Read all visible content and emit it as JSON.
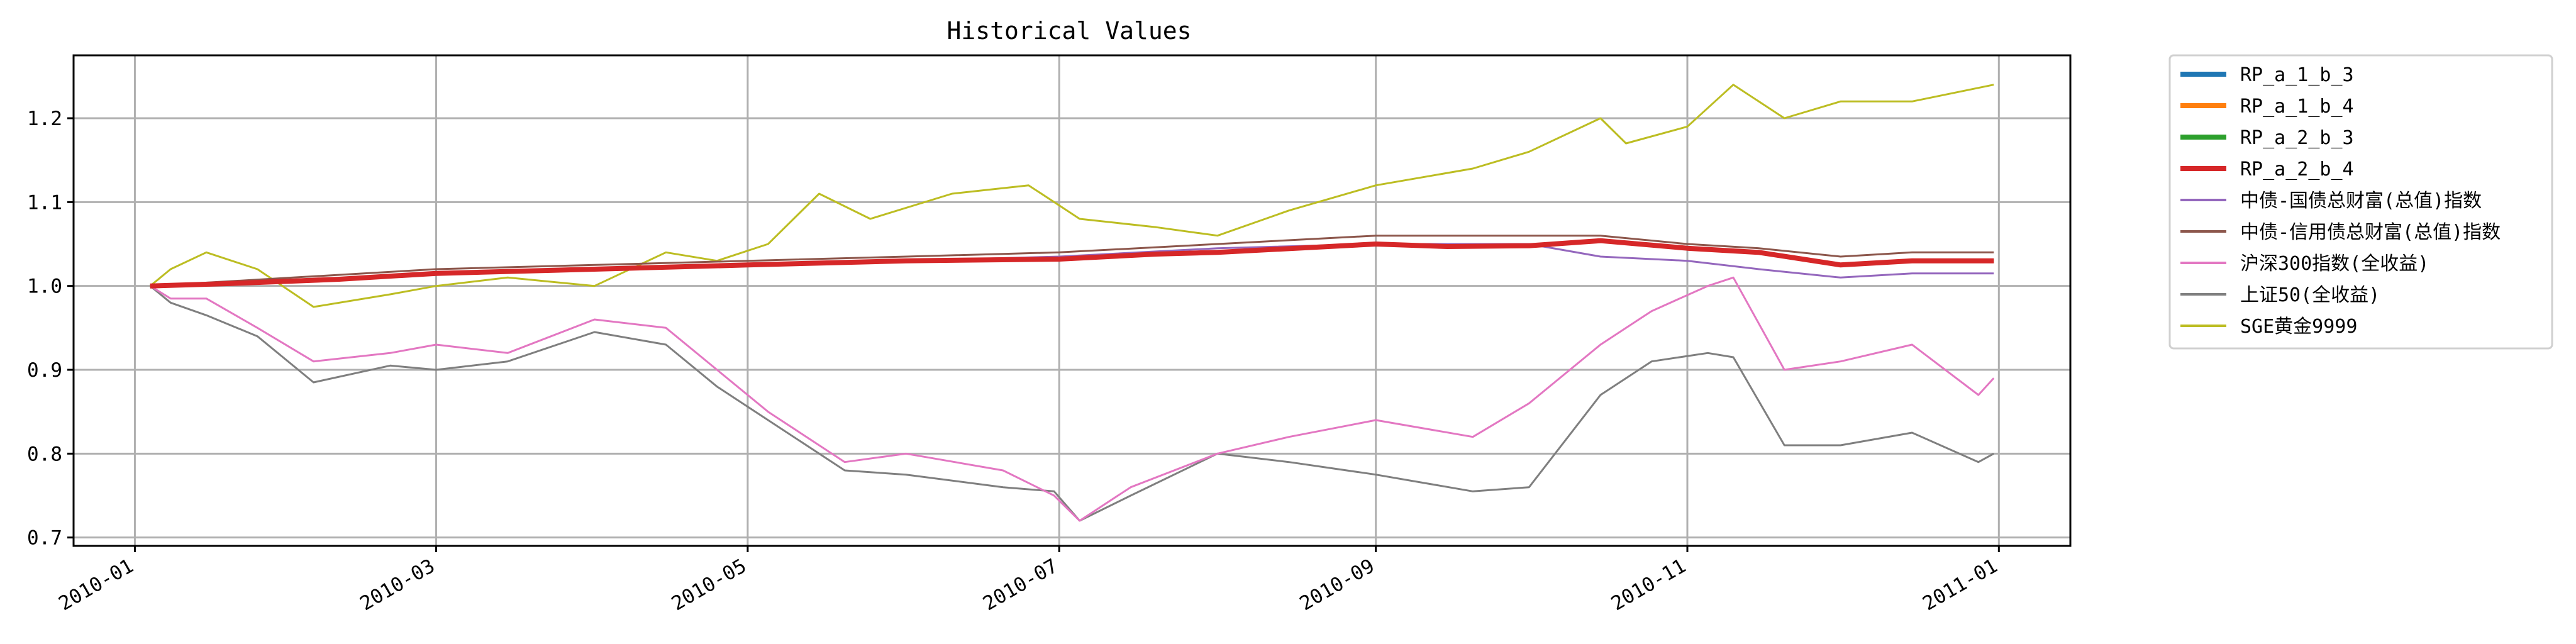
{
  "chart_data": {
    "type": "line",
    "title": "Historical Values",
    "xlabel": "",
    "ylabel": "",
    "x_range": [
      "2009-12-20",
      "2011-01-15"
    ],
    "ylim": [
      0.69,
      1.275
    ],
    "grid": true,
    "legend_placement": "outside-right-top",
    "x_ticks": [
      "2010-01",
      "2010-03",
      "2010-05",
      "2010-07",
      "2010-09",
      "2010-11",
      "2011-01"
    ],
    "x_tick_dates": [
      "2010-01-01",
      "2010-03-01",
      "2010-05-01",
      "2010-07-01",
      "2010-09-01",
      "2010-11-01",
      "2011-01-01"
    ],
    "y_ticks": [
      0.7,
      0.8,
      0.9,
      1.0,
      1.1,
      1.2
    ],
    "y_tick_labels": [
      "0.7",
      "0.8",
      "0.9",
      "1.0",
      "1.1",
      "1.2"
    ],
    "series": [
      {
        "name": "RP_a_1_b_3",
        "color": "#1f77b4",
        "width": 7,
        "x": [
          "2010-01-04",
          "2010-01-20",
          "2010-02-10",
          "2010-03-01",
          "2010-04-01",
          "2010-05-01",
          "2010-06-01",
          "2010-07-01",
          "2010-07-20",
          "2010-08-01",
          "2010-09-01",
          "2010-09-15",
          "2010-10-01",
          "2010-10-15",
          "2010-11-01",
          "2010-11-15",
          "2010-12-01",
          "2010-12-15",
          "2010-12-31"
        ],
        "y": [
          1.0,
          1.003,
          1.008,
          1.015,
          1.02,
          1.025,
          1.03,
          1.032,
          1.038,
          1.04,
          1.05,
          1.047,
          1.048,
          1.054,
          1.045,
          1.04,
          1.025,
          1.03,
          1.03
        ]
      },
      {
        "name": "RP_a_1_b_4",
        "color": "#ff7f0e",
        "width": 7,
        "x": [
          "2010-01-04",
          "2010-01-20",
          "2010-02-10",
          "2010-03-01",
          "2010-04-01",
          "2010-05-01",
          "2010-06-01",
          "2010-07-01",
          "2010-07-20",
          "2010-08-01",
          "2010-09-01",
          "2010-09-15",
          "2010-10-01",
          "2010-10-15",
          "2010-11-01",
          "2010-11-15",
          "2010-12-01",
          "2010-12-15",
          "2010-12-31"
        ],
        "y": [
          1.0,
          1.003,
          1.008,
          1.015,
          1.02,
          1.025,
          1.03,
          1.032,
          1.038,
          1.04,
          1.05,
          1.047,
          1.048,
          1.054,
          1.045,
          1.04,
          1.025,
          1.03,
          1.03
        ]
      },
      {
        "name": "RP_a_2_b_3",
        "color": "#2ca02c",
        "width": 7,
        "x": [
          "2010-01-04",
          "2010-01-20",
          "2010-02-10",
          "2010-03-01",
          "2010-04-01",
          "2010-05-01",
          "2010-06-01",
          "2010-07-01",
          "2010-07-20",
          "2010-08-01",
          "2010-09-01",
          "2010-09-15",
          "2010-10-01",
          "2010-10-15",
          "2010-11-01",
          "2010-11-15",
          "2010-12-01",
          "2010-12-15",
          "2010-12-31"
        ],
        "y": [
          1.0,
          1.003,
          1.008,
          1.015,
          1.02,
          1.025,
          1.03,
          1.032,
          1.038,
          1.04,
          1.05,
          1.047,
          1.048,
          1.054,
          1.045,
          1.04,
          1.025,
          1.03,
          1.03
        ]
      },
      {
        "name": "RP_a_2_b_4",
        "color": "#d62728",
        "width": 8,
        "x": [
          "2010-01-04",
          "2010-01-20",
          "2010-02-10",
          "2010-03-01",
          "2010-04-01",
          "2010-05-01",
          "2010-06-01",
          "2010-07-01",
          "2010-07-20",
          "2010-08-01",
          "2010-09-01",
          "2010-09-15",
          "2010-10-01",
          "2010-10-15",
          "2010-11-01",
          "2010-11-15",
          "2010-12-01",
          "2010-12-15",
          "2010-12-31"
        ],
        "y": [
          1.0,
          1.003,
          1.008,
          1.015,
          1.02,
          1.025,
          1.03,
          1.032,
          1.038,
          1.04,
          1.05,
          1.047,
          1.048,
          1.054,
          1.045,
          1.04,
          1.025,
          1.03,
          1.03
        ]
      },
      {
        "name": "中债-国债总财富(总值)指数",
        "color": "#9467bd",
        "width": 3,
        "x": [
          "2010-01-04",
          "2010-02-01",
          "2010-03-01",
          "2010-04-01",
          "2010-05-01",
          "2010-06-01",
          "2010-07-01",
          "2010-08-01",
          "2010-09-01",
          "2010-10-01",
          "2010-10-15",
          "2010-11-01",
          "2010-11-15",
          "2010-12-01",
          "2010-12-15",
          "2010-12-31"
        ],
        "y": [
          1.0,
          1.006,
          1.015,
          1.02,
          1.025,
          1.03,
          1.035,
          1.045,
          1.05,
          1.05,
          1.035,
          1.03,
          1.02,
          1.01,
          1.015,
          1.015
        ]
      },
      {
        "name": "中债-信用债总财富(总值)指数",
        "color": "#8c564b",
        "width": 3,
        "x": [
          "2010-01-04",
          "2010-02-01",
          "2010-03-01",
          "2010-04-01",
          "2010-05-01",
          "2010-06-01",
          "2010-07-01",
          "2010-08-01",
          "2010-09-01",
          "2010-10-01",
          "2010-10-15",
          "2010-11-01",
          "2010-11-15",
          "2010-12-01",
          "2010-12-15",
          "2010-12-31"
        ],
        "y": [
          1.0,
          1.01,
          1.02,
          1.025,
          1.03,
          1.035,
          1.04,
          1.05,
          1.06,
          1.06,
          1.06,
          1.05,
          1.045,
          1.035,
          1.04,
          1.04
        ]
      },
      {
        "name": "沪深300指数(全收益)",
        "color": "#e377c2",
        "width": 3,
        "x": [
          "2010-01-04",
          "2010-01-08",
          "2010-01-15",
          "2010-01-25",
          "2010-02-05",
          "2010-02-20",
          "2010-03-01",
          "2010-03-15",
          "2010-04-01",
          "2010-04-15",
          "2010-04-25",
          "2010-05-05",
          "2010-05-20",
          "2010-06-01",
          "2010-06-20",
          "2010-06-30",
          "2010-07-05",
          "2010-07-15",
          "2010-08-01",
          "2010-08-15",
          "2010-09-01",
          "2010-09-20",
          "2010-10-01",
          "2010-10-15",
          "2010-10-25",
          "2010-11-05",
          "2010-11-10",
          "2010-11-20",
          "2010-12-01",
          "2010-12-15",
          "2010-12-28",
          "2010-12-31"
        ],
        "y": [
          1.0,
          0.985,
          0.985,
          0.95,
          0.91,
          0.92,
          0.93,
          0.92,
          0.96,
          0.95,
          0.9,
          0.85,
          0.79,
          0.8,
          0.78,
          0.75,
          0.72,
          0.76,
          0.8,
          0.82,
          0.84,
          0.82,
          0.86,
          0.93,
          0.97,
          1.0,
          1.01,
          0.9,
          0.91,
          0.93,
          0.87,
          0.89
        ]
      },
      {
        "name": "上证50(全收益)",
        "color": "#7f7f7f",
        "width": 3,
        "x": [
          "2010-01-04",
          "2010-01-08",
          "2010-01-15",
          "2010-01-25",
          "2010-02-05",
          "2010-02-20",
          "2010-03-01",
          "2010-03-15",
          "2010-04-01",
          "2010-04-15",
          "2010-04-25",
          "2010-05-05",
          "2010-05-20",
          "2010-06-01",
          "2010-06-20",
          "2010-06-30",
          "2010-07-05",
          "2010-07-15",
          "2010-08-01",
          "2010-08-15",
          "2010-09-01",
          "2010-09-20",
          "2010-10-01",
          "2010-10-15",
          "2010-10-25",
          "2010-11-05",
          "2010-11-10",
          "2010-11-20",
          "2010-12-01",
          "2010-12-15",
          "2010-12-28",
          "2010-12-31"
        ],
        "y": [
          1.0,
          0.98,
          0.965,
          0.94,
          0.885,
          0.905,
          0.9,
          0.91,
          0.945,
          0.93,
          0.88,
          0.84,
          0.78,
          0.775,
          0.76,
          0.755,
          0.72,
          0.75,
          0.8,
          0.79,
          0.775,
          0.755,
          0.76,
          0.87,
          0.91,
          0.92,
          0.915,
          0.81,
          0.81,
          0.825,
          0.79,
          0.8
        ]
      },
      {
        "name": "SGE黄金9999",
        "color": "#bcbd22",
        "width": 3,
        "x": [
          "2010-01-04",
          "2010-01-08",
          "2010-01-15",
          "2010-01-25",
          "2010-02-05",
          "2010-02-20",
          "2010-03-01",
          "2010-03-15",
          "2010-04-01",
          "2010-04-15",
          "2010-04-25",
          "2010-05-05",
          "2010-05-15",
          "2010-05-25",
          "2010-06-10",
          "2010-06-25",
          "2010-06-30",
          "2010-07-05",
          "2010-07-20",
          "2010-08-01",
          "2010-08-15",
          "2010-09-01",
          "2010-09-20",
          "2010-10-01",
          "2010-10-15",
          "2010-10-20",
          "2010-11-01",
          "2010-11-10",
          "2010-11-20",
          "2010-12-01",
          "2010-12-15",
          "2010-12-31"
        ],
        "y": [
          1.0,
          1.02,
          1.04,
          1.02,
          0.975,
          0.99,
          1.0,
          1.01,
          1.0,
          1.04,
          1.03,
          1.05,
          1.11,
          1.08,
          1.11,
          1.12,
          1.1,
          1.08,
          1.07,
          1.06,
          1.09,
          1.12,
          1.14,
          1.16,
          1.2,
          1.17,
          1.19,
          1.24,
          1.2,
          1.22,
          1.22,
          1.24
        ]
      }
    ]
  }
}
